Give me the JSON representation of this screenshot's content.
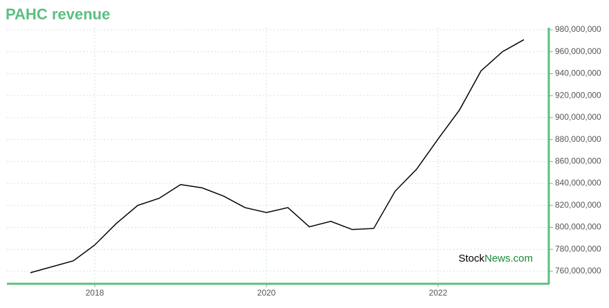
{
  "chart_data": {
    "type": "line",
    "title": "PAHC revenue",
    "x": [
      2017.25,
      2017.75,
      2018.0,
      2018.25,
      2018.5,
      2018.75,
      2019.0,
      2019.25,
      2019.5,
      2019.75,
      2020.0,
      2020.25,
      2020.5,
      2020.75,
      2021.0,
      2021.25,
      2021.5,
      2021.75,
      2022.0,
      2022.25,
      2022.5,
      2022.75,
      2023.0
    ],
    "series": [
      {
        "name": "Revenue",
        "color": "#000000",
        "values": [
          758700000,
          769500000,
          784000000,
          803500000,
          820000000,
          826500000,
          839000000,
          836000000,
          828500000,
          818000000,
          813500000,
          818000000,
          800500000,
          805500000,
          798000000,
          799000000,
          833000000,
          853000000,
          880500000,
          907000000,
          942500000,
          960000000,
          971000000
        ]
      }
    ],
    "xlim": [
      2016.976,
      2023.29
    ],
    "xticks": [
      2018,
      2020,
      2022
    ],
    "ylim": [
      748600000,
      981900000
    ],
    "yticks": [
      {
        "value": 760000000,
        "label": "760,000,000"
      },
      {
        "value": 780000000,
        "label": "780,000,000"
      },
      {
        "value": 800000000,
        "label": "800,000,000"
      },
      {
        "value": 820000000,
        "label": "820,000,000"
      },
      {
        "value": 840000000,
        "label": "840,000,000"
      },
      {
        "value": 860000000,
        "label": "860,000,000"
      },
      {
        "value": 880000000,
        "label": "880,000,000"
      },
      {
        "value": 900000000,
        "label": "900,000,000"
      },
      {
        "value": 920000000,
        "label": "920,000,000"
      },
      {
        "value": 940000000,
        "label": "940,000,000"
      },
      {
        "value": 960000000,
        "label": "960,000,000"
      },
      {
        "value": 980000000,
        "label": "980,000,000"
      }
    ],
    "grid": true,
    "watermark": [
      "Stock",
      "News.com"
    ]
  }
}
